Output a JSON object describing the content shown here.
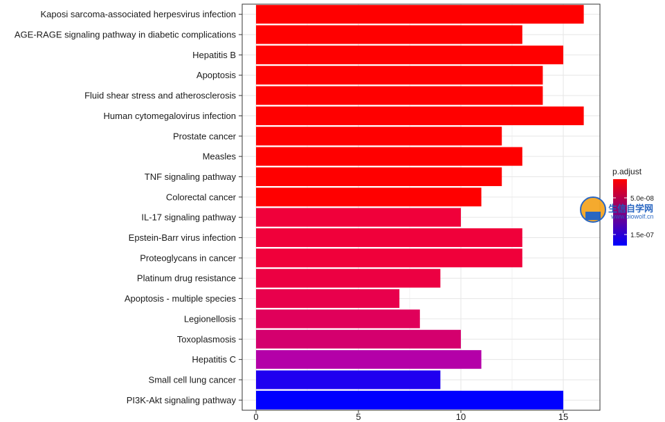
{
  "chart_data": {
    "type": "bar",
    "orientation": "horizontal",
    "categories": [
      "Kaposi sarcoma-associated herpesvirus infection",
      "AGE-RAGE signaling pathway in diabetic complications",
      "Hepatitis B",
      "Apoptosis",
      "Fluid shear stress and atherosclerosis",
      "Human cytomegalovirus infection",
      "Prostate cancer",
      "Measles",
      "TNF signaling pathway",
      "Colorectal cancer",
      "IL-17 signaling pathway",
      "Epstein-Barr virus infection",
      "Proteoglycans in cancer",
      "Platinum drug resistance",
      "Apoptosis - multiple species",
      "Legionellosis",
      "Toxoplasmosis",
      "Hepatitis C",
      "Small cell lung cancer",
      "PI3K-Akt signaling pathway"
    ],
    "values": [
      16,
      13,
      15,
      14,
      14,
      16,
      12,
      13,
      12,
      11,
      10,
      13,
      13,
      9,
      7,
      8,
      10,
      11,
      9,
      15
    ],
    "bar_colors": [
      "#ff0000",
      "#ff0000",
      "#ff0000",
      "#ff0000",
      "#ff0000",
      "#ff0000",
      "#ff0000",
      "#ff0000",
      "#ff0000",
      "#ff0000",
      "#f0003a",
      "#f0003a",
      "#f0003a",
      "#ec0042",
      "#e8004c",
      "#e0005a",
      "#d4006e",
      "#b400a8",
      "#1f00f0",
      "#0000ff"
    ],
    "xlim": [
      0,
      16.7
    ],
    "xticks": [
      "0",
      "5",
      "10",
      "15"
    ],
    "xtick_values": [
      0,
      5,
      10,
      15
    ],
    "xlabel": "",
    "ylabel": "",
    "grid": true,
    "legend": {
      "title": "p.adjust",
      "placement": "right",
      "labels": [
        "5.0e-08",
        "1.5e-07"
      ],
      "gradient_colors": [
        "#ff0000",
        "#0000ff"
      ]
    }
  },
  "watermark": {
    "title": "生信自学网",
    "url": "www.biowolf.cn"
  }
}
